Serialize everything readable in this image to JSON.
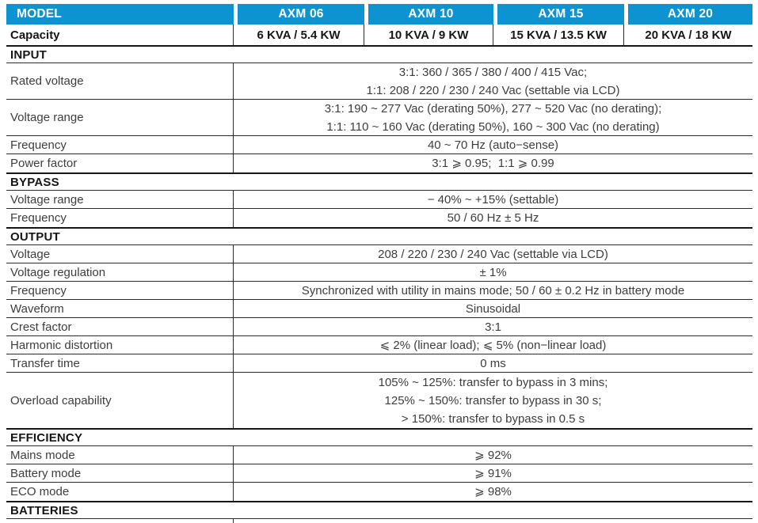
{
  "accent_color": "#0d93d2",
  "header": {
    "model_label": "MODEL",
    "models": [
      "AXM 06",
      "AXM 10",
      "AXM 15",
      "AXM 20"
    ]
  },
  "capacity": {
    "label": "Capacity",
    "values": [
      "6 KVA / 5.4 KW",
      "10 KVA / 9 KW",
      "15 KVA / 13.5 KW",
      "20 KVA / 18 KW"
    ]
  },
  "sections": [
    {
      "title": "INPUT",
      "rows": [
        {
          "label": "Rated voltage",
          "lines": [
            "3:1: 360 / 365 / 380 / 400 / 415 Vac;",
            "1:1: 208 / 220 / 230 / 240 Vac (settable via LCD)"
          ]
        },
        {
          "label": "Voltage range",
          "lines": [
            "3:1: 190 ~ 277 Vac (derating 50%), 277 ~ 520 Vac (no derating);",
            "1:1: 110 ~ 160 Vac (derating 50%), 160 ~ 300 Vac (no derating)"
          ]
        },
        {
          "label": "Frequency",
          "lines": [
            "40 ~ 70 Hz (auto−sense)"
          ]
        },
        {
          "label": "Power factor",
          "lines": [
            "3:1 ⩾ 0.95;  1:1 ⩾ 0.99"
          ]
        }
      ]
    },
    {
      "title": "BYPASS",
      "rows": [
        {
          "label": "Voltage range",
          "lines": [
            "− 40% ~ +15% (settable)"
          ]
        },
        {
          "label": "Frequency",
          "lines": [
            "50 / 60 Hz ± 5 Hz"
          ]
        }
      ]
    },
    {
      "title": "OUTPUT",
      "rows": [
        {
          "label": "Voltage",
          "lines": [
            "208 / 220 / 230 / 240 Vac (settable via LCD)"
          ]
        },
        {
          "label": "Voltage regulation",
          "lines": [
            "± 1%"
          ]
        },
        {
          "label": "Frequency",
          "lines": [
            "Synchronized with utility in mains mode; 50 / 60 ± 0.2 Hz in battery mode"
          ]
        },
        {
          "label": "Waveform",
          "lines": [
            "Sinusoidal"
          ]
        },
        {
          "label": "Crest factor",
          "lines": [
            "3:1"
          ]
        },
        {
          "label": "Harmonic distortion",
          "lines": [
            "⩽ 2% (linear load); ⩽ 5% (non−linear load)"
          ]
        },
        {
          "label": "Transfer time",
          "lines": [
            "0 ms"
          ]
        },
        {
          "label": "Overload capability",
          "lines": [
            "105% ~ 125%: transfer to bypass in 3 mins;",
            "125% ~ 150%: transfer to bypass in 30 s;",
            "> 150%: transfer to bypass in 0.5 s"
          ]
        }
      ]
    },
    {
      "title": "EFFICIENCY",
      "rows": [
        {
          "label": "Mains mode",
          "lines": [
            "⩾ 92%"
          ]
        },
        {
          "label": "Battery mode",
          "lines": [
            "⩾ 91%"
          ]
        },
        {
          "label": "ECO mode",
          "lines": [
            "⩾ 98%"
          ]
        }
      ]
    },
    {
      "title": "BATTERIES",
      "rows": []
    }
  ]
}
